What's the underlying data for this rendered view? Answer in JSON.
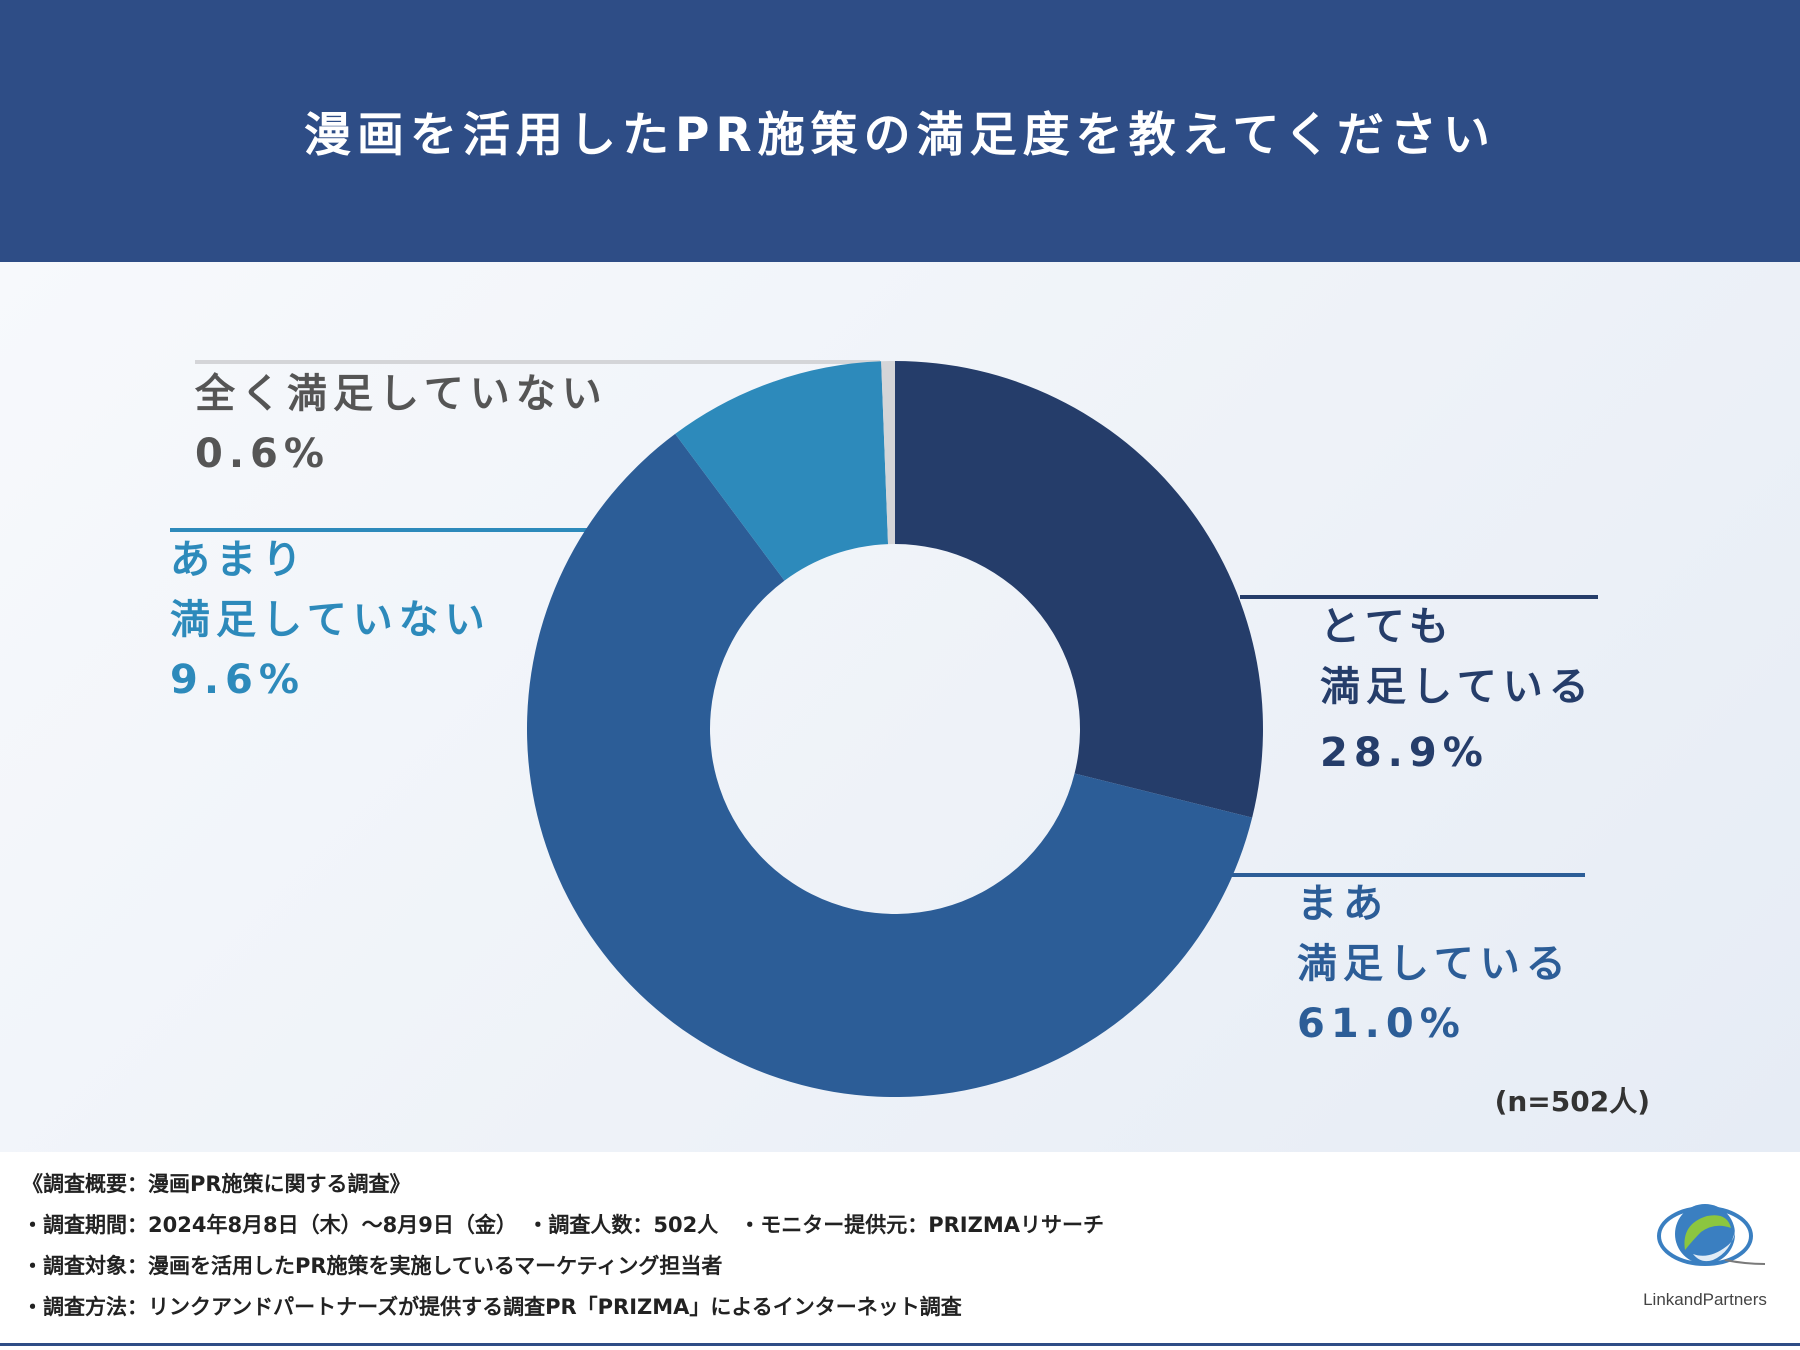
{
  "header": {
    "title": "漫画を活用したPR施策の満足度を教えてください"
  },
  "chart_data": {
    "type": "pie",
    "style": "donut",
    "title": "漫画を活用したPR施策の満足度を教えてください",
    "categories": [
      "とても満足している",
      "まあ満足している",
      "あまり満足していない",
      "全く満足していない"
    ],
    "values": [
      28.9,
      61.0,
      9.6,
      0.6
    ],
    "unit": "%",
    "colors": [
      "#253d6a",
      "#2c5d97",
      "#2d8abb",
      "#d4d5d8"
    ],
    "labels": [
      {
        "lines": [
          "とても",
          "満足している"
        ],
        "value_text": "28.9%",
        "color": "#253d6a"
      },
      {
        "lines": [
          "まあ",
          "満足している"
        ],
        "value_text": "61.0%",
        "color": "#2c5d97"
      },
      {
        "lines": [
          "あまり",
          "満足していない"
        ],
        "value_text": "9.6%",
        "color": "#2d8abb"
      },
      {
        "lines": [
          "全く満足していない"
        ],
        "value_text": "0.6%",
        "color": "#555555"
      }
    ],
    "sample_note": "(n=502人)"
  },
  "footer": {
    "lines": [
      "《調査概要：漫画PR施策に関する調査》",
      "・調査期間：2024年8月8日（木）～8月9日（金）　・調査人数：502人　・モニター提供元：PRIZMAリサーチ",
      "・調査対象：漫画を活用したPR施策を実施しているマーケティング担当者",
      "・調査方法：リンクアンドパートナーズが提供する調査PR「PRIZMA」によるインターネット調査"
    ],
    "logo_text": "LinkandPartners"
  }
}
